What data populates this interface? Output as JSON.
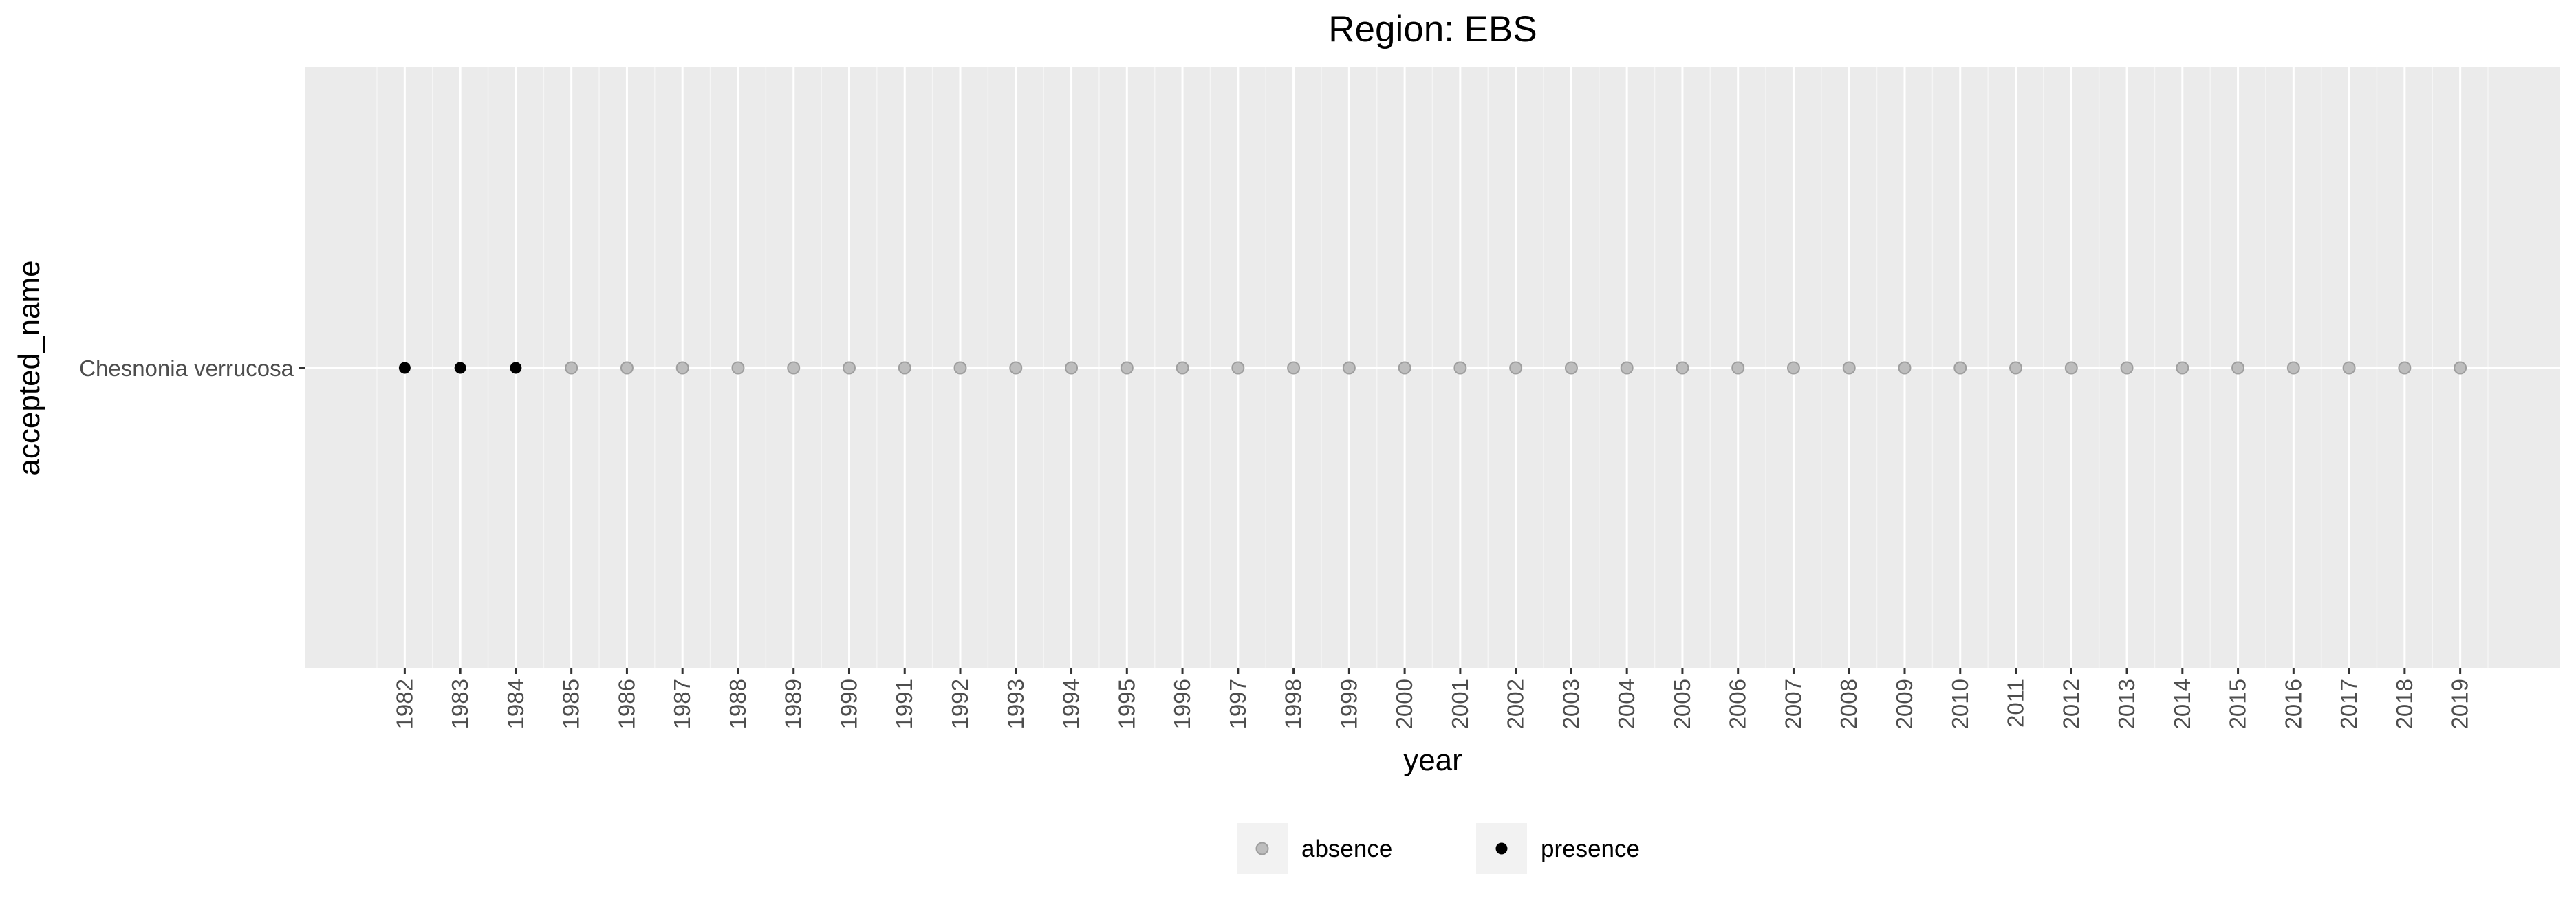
{
  "chart_data": {
    "type": "scatter",
    "title": "Region: EBS",
    "xlabel": "year",
    "ylabel": "accepted_name",
    "categories_y": [
      "Chesnonia verrucosa"
    ],
    "x": [
      1982,
      1983,
      1984,
      1985,
      1986,
      1987,
      1988,
      1989,
      1990,
      1991,
      1992,
      1993,
      1994,
      1995,
      1996,
      1997,
      1998,
      1999,
      2000,
      2001,
      2002,
      2003,
      2004,
      2005,
      2006,
      2007,
      2008,
      2009,
      2010,
      2011,
      2012,
      2013,
      2014,
      2015,
      2016,
      2017,
      2018,
      2019
    ],
    "status": [
      "presence",
      "presence",
      "presence",
      "absence",
      "absence",
      "absence",
      "absence",
      "absence",
      "absence",
      "absence",
      "absence",
      "absence",
      "absence",
      "absence",
      "absence",
      "absence",
      "absence",
      "absence",
      "absence",
      "absence",
      "absence",
      "absence",
      "absence",
      "absence",
      "absence",
      "absence",
      "absence",
      "absence",
      "absence",
      "absence",
      "absence",
      "absence",
      "absence",
      "absence",
      "absence",
      "absence",
      "absence",
      "absence"
    ],
    "xlim": [
      1980.2,
      2020.8
    ],
    "legend": {
      "position": "bottom",
      "items": [
        {
          "label": "absence",
          "color": "#bdbdbd"
        },
        {
          "label": "presence",
          "color": "#000000"
        }
      ]
    },
    "grid": true,
    "colors": {
      "panel_bg": "#ebebeb",
      "grid_major": "#ffffff",
      "grid_minor": "#f5f5f5",
      "presence": "#000000",
      "absence": "#bdbdbd",
      "absence_stroke": "#9e9e9e",
      "tick_text": "#4d4d4d"
    }
  }
}
